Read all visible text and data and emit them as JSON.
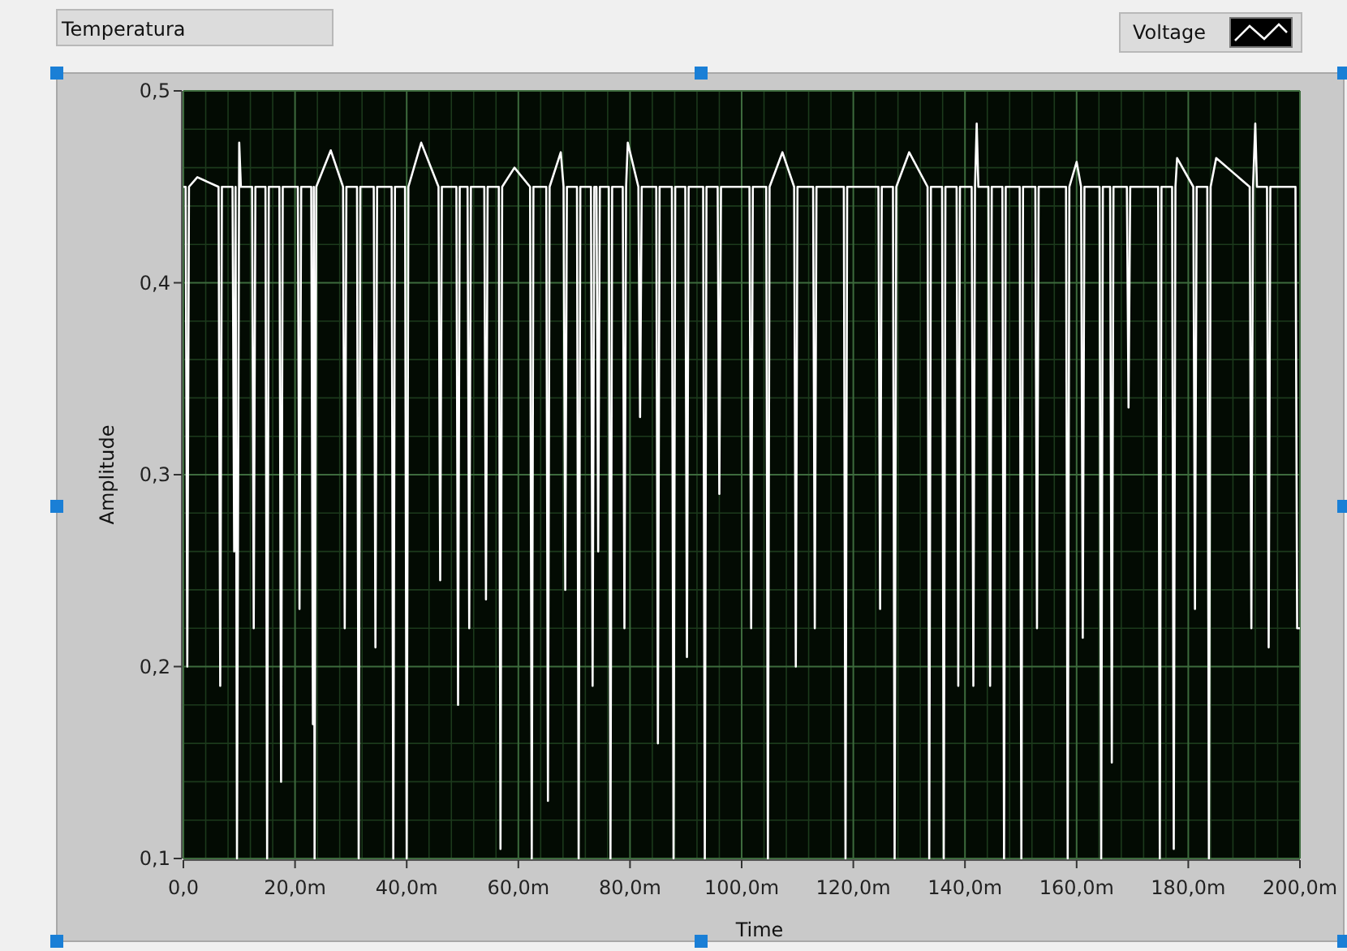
{
  "chart_data": {
    "type": "line",
    "title": "Temperatura",
    "xlabel": "Time",
    "ylabel": "Amplitude",
    "xlim": [
      0,
      200
    ],
    "ylim": [
      0.1,
      0.5
    ],
    "xticks": [
      {
        "value": 0,
        "label": "0,0"
      },
      {
        "value": 20,
        "label": "20,0m"
      },
      {
        "value": 40,
        "label": "40,0m"
      },
      {
        "value": 60,
        "label": "60,0m"
      },
      {
        "value": 80,
        "label": "80,0m"
      },
      {
        "value": 100,
        "label": "100,0m"
      },
      {
        "value": 120,
        "label": "120,0m"
      },
      {
        "value": 140,
        "label": "140,0m"
      },
      {
        "value": 160,
        "label": "160,0m"
      },
      {
        "value": 180,
        "label": "180,0m"
      },
      {
        "value": 200,
        "label": "200,0m"
      }
    ],
    "yticks": [
      {
        "value": 0.1,
        "label": "0,1"
      },
      {
        "value": 0.2,
        "label": "0,2"
      },
      {
        "value": 0.3,
        "label": "0,3"
      },
      {
        "value": 0.4,
        "label": "0,4"
      },
      {
        "value": 0.5,
        "label": "0,5"
      }
    ],
    "grid": true,
    "legend": "top right",
    "marker": "none",
    "line_style": "solid",
    "series": [
      {
        "name": "Voltage",
        "color": "#ffffff",
        "x": [
          0,
          0.4,
          0.7,
          1.0,
          2.5,
          6.3,
          6.6,
          6.9,
          8.8,
          9.1,
          9.35,
          9.6,
          10.0,
          10.3,
          12.3,
          12.6,
          12.9,
          14.7,
          15.0,
          15.3,
          17.2,
          17.5,
          17.8,
          20.5,
          20.8,
          21.1,
          22.9,
          23.2,
          23.35,
          23.5,
          23.8,
          26.4,
          28.6,
          28.9,
          29.2,
          31.1,
          31.4,
          31.7,
          34.1,
          34.4,
          34.7,
          37.3,
          37.6,
          37.9,
          39.7,
          40.0,
          40.3,
          42.6,
          45.7,
          46.0,
          46.3,
          48.9,
          49.2,
          49.5,
          50.9,
          51.2,
          51.5,
          53.9,
          54.2,
          54.5,
          56.5,
          56.8,
          57.1,
          59.3,
          62.1,
          62.4,
          62.7,
          65.0,
          65.3,
          65.6,
          67.6,
          68.1,
          68.4,
          68.7,
          70.5,
          70.8,
          71.1,
          73.0,
          73.3,
          73.6,
          74.0,
          74.3,
          74.6,
          76.2,
          76.5,
          76.8,
          78.7,
          79.0,
          79.3,
          79.6,
          81.5,
          81.8,
          82.1,
          84.7,
          85.0,
          85.3,
          87.5,
          87.8,
          88.1,
          89.9,
          90.2,
          90.5,
          93.1,
          93.4,
          93.7,
          95.7,
          96.0,
          96.3,
          101.4,
          101.7,
          102.0,
          104.4,
          104.7,
          105.0,
          107.3,
          109.4,
          109.7,
          110.0,
          112.8,
          113.1,
          113.4,
          118.3,
          118.6,
          118.9,
          124.5,
          124.8,
          125.1,
          127.1,
          127.4,
          127.7,
          130.0,
          133.3,
          133.6,
          133.9,
          135.9,
          136.2,
          136.5,
          138.5,
          138.8,
          139.1,
          141.2,
          141.5,
          141.8,
          142.1,
          142.4,
          144.2,
          144.5,
          144.8,
          146.7,
          147.0,
          147.3,
          149.8,
          150.1,
          150.4,
          152.6,
          152.9,
          153.2,
          158.1,
          158.4,
          158.7,
          160.0,
          160.8,
          161.1,
          161.4,
          164.1,
          164.4,
          164.7,
          166.0,
          166.3,
          166.6,
          169.0,
          169.3,
          169.6,
          174.6,
          174.9,
          175.2,
          177.1,
          177.4,
          177.7,
          178.0,
          180.9,
          181.2,
          181.5,
          183.4,
          183.7,
          184.0,
          185.0,
          191.0,
          191.3,
          191.6,
          192.0,
          192.3,
          194.1,
          194.4,
          194.7,
          199.2,
          199.5,
          200
        ],
        "values": [
          0.45,
          0.45,
          0.2,
          0.45,
          0.455,
          0.45,
          0.19,
          0.45,
          0.45,
          0.26,
          0.45,
          0.1,
          0.473,
          0.45,
          0.45,
          0.22,
          0.45,
          0.45,
          0.1,
          0.45,
          0.45,
          0.14,
          0.45,
          0.45,
          0.23,
          0.45,
          0.45,
          0.17,
          0.45,
          0.1,
          0.45,
          0.469,
          0.45,
          0.22,
          0.45,
          0.45,
          0.1,
          0.45,
          0.45,
          0.21,
          0.45,
          0.45,
          0.1,
          0.45,
          0.45,
          0.1,
          0.45,
          0.473,
          0.45,
          0.245,
          0.45,
          0.45,
          0.18,
          0.45,
          0.45,
          0.22,
          0.45,
          0.45,
          0.235,
          0.45,
          0.45,
          0.105,
          0.45,
          0.46,
          0.45,
          0.1,
          0.45,
          0.45,
          0.13,
          0.45,
          0.468,
          0.45,
          0.24,
          0.45,
          0.45,
          0.1,
          0.45,
          0.45,
          0.19,
          0.45,
          0.45,
          0.26,
          0.45,
          0.45,
          0.1,
          0.45,
          0.45,
          0.22,
          0.45,
          0.473,
          0.45,
          0.33,
          0.45,
          0.45,
          0.16,
          0.45,
          0.45,
          0.1,
          0.45,
          0.45,
          0.205,
          0.45,
          0.45,
          0.1,
          0.45,
          0.45,
          0.29,
          0.45,
          0.45,
          0.22,
          0.45,
          0.45,
          0.1,
          0.45,
          0.468,
          0.45,
          0.2,
          0.45,
          0.45,
          0.22,
          0.45,
          0.45,
          0.1,
          0.45,
          0.45,
          0.23,
          0.45,
          0.45,
          0.1,
          0.45,
          0.468,
          0.45,
          0.1,
          0.45,
          0.45,
          0.1,
          0.45,
          0.45,
          0.19,
          0.45,
          0.45,
          0.19,
          0.45,
          0.483,
          0.45,
          0.45,
          0.19,
          0.45,
          0.45,
          0.1,
          0.45,
          0.45,
          0.1,
          0.45,
          0.45,
          0.22,
          0.45,
          0.45,
          0.1,
          0.45,
          0.463,
          0.45,
          0.215,
          0.45,
          0.45,
          0.1,
          0.45,
          0.45,
          0.15,
          0.45,
          0.45,
          0.335,
          0.45,
          0.45,
          0.1,
          0.45,
          0.45,
          0.105,
          0.45,
          0.465,
          0.45,
          0.23,
          0.45,
          0.45,
          0.1,
          0.45,
          0.465,
          0.45,
          0.22,
          0.45,
          0.483,
          0.45,
          0.45,
          0.21,
          0.45,
          0.45,
          0.22,
          0.22
        ]
      }
    ]
  }
}
